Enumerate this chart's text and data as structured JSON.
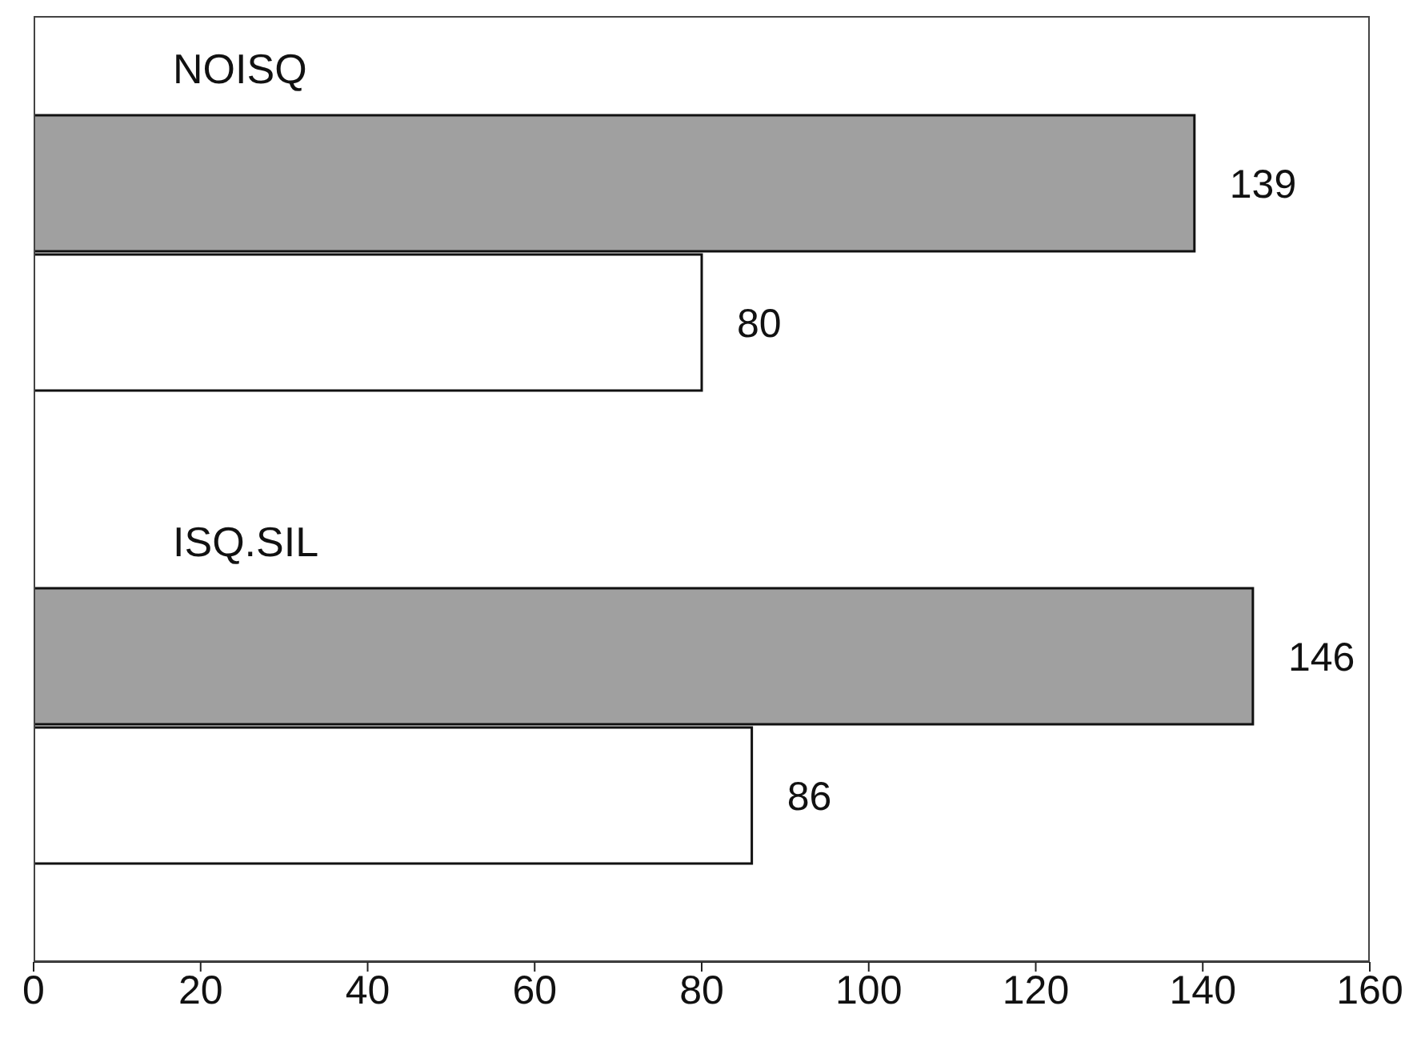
{
  "chart_data": {
    "type": "bar",
    "orientation": "horizontal",
    "categories": [
      "NOISQ",
      "ISQ.SIL"
    ],
    "series": [
      {
        "color": "#a0a0a0",
        "values": [
          139,
          146
        ]
      },
      {
        "color": "#ffffff",
        "values": [
          80,
          86
        ]
      }
    ],
    "xlim": [
      0,
      160
    ],
    "xticks": [
      0,
      20,
      40,
      60,
      80,
      100,
      120,
      140,
      160
    ],
    "data_labels": true
  }
}
